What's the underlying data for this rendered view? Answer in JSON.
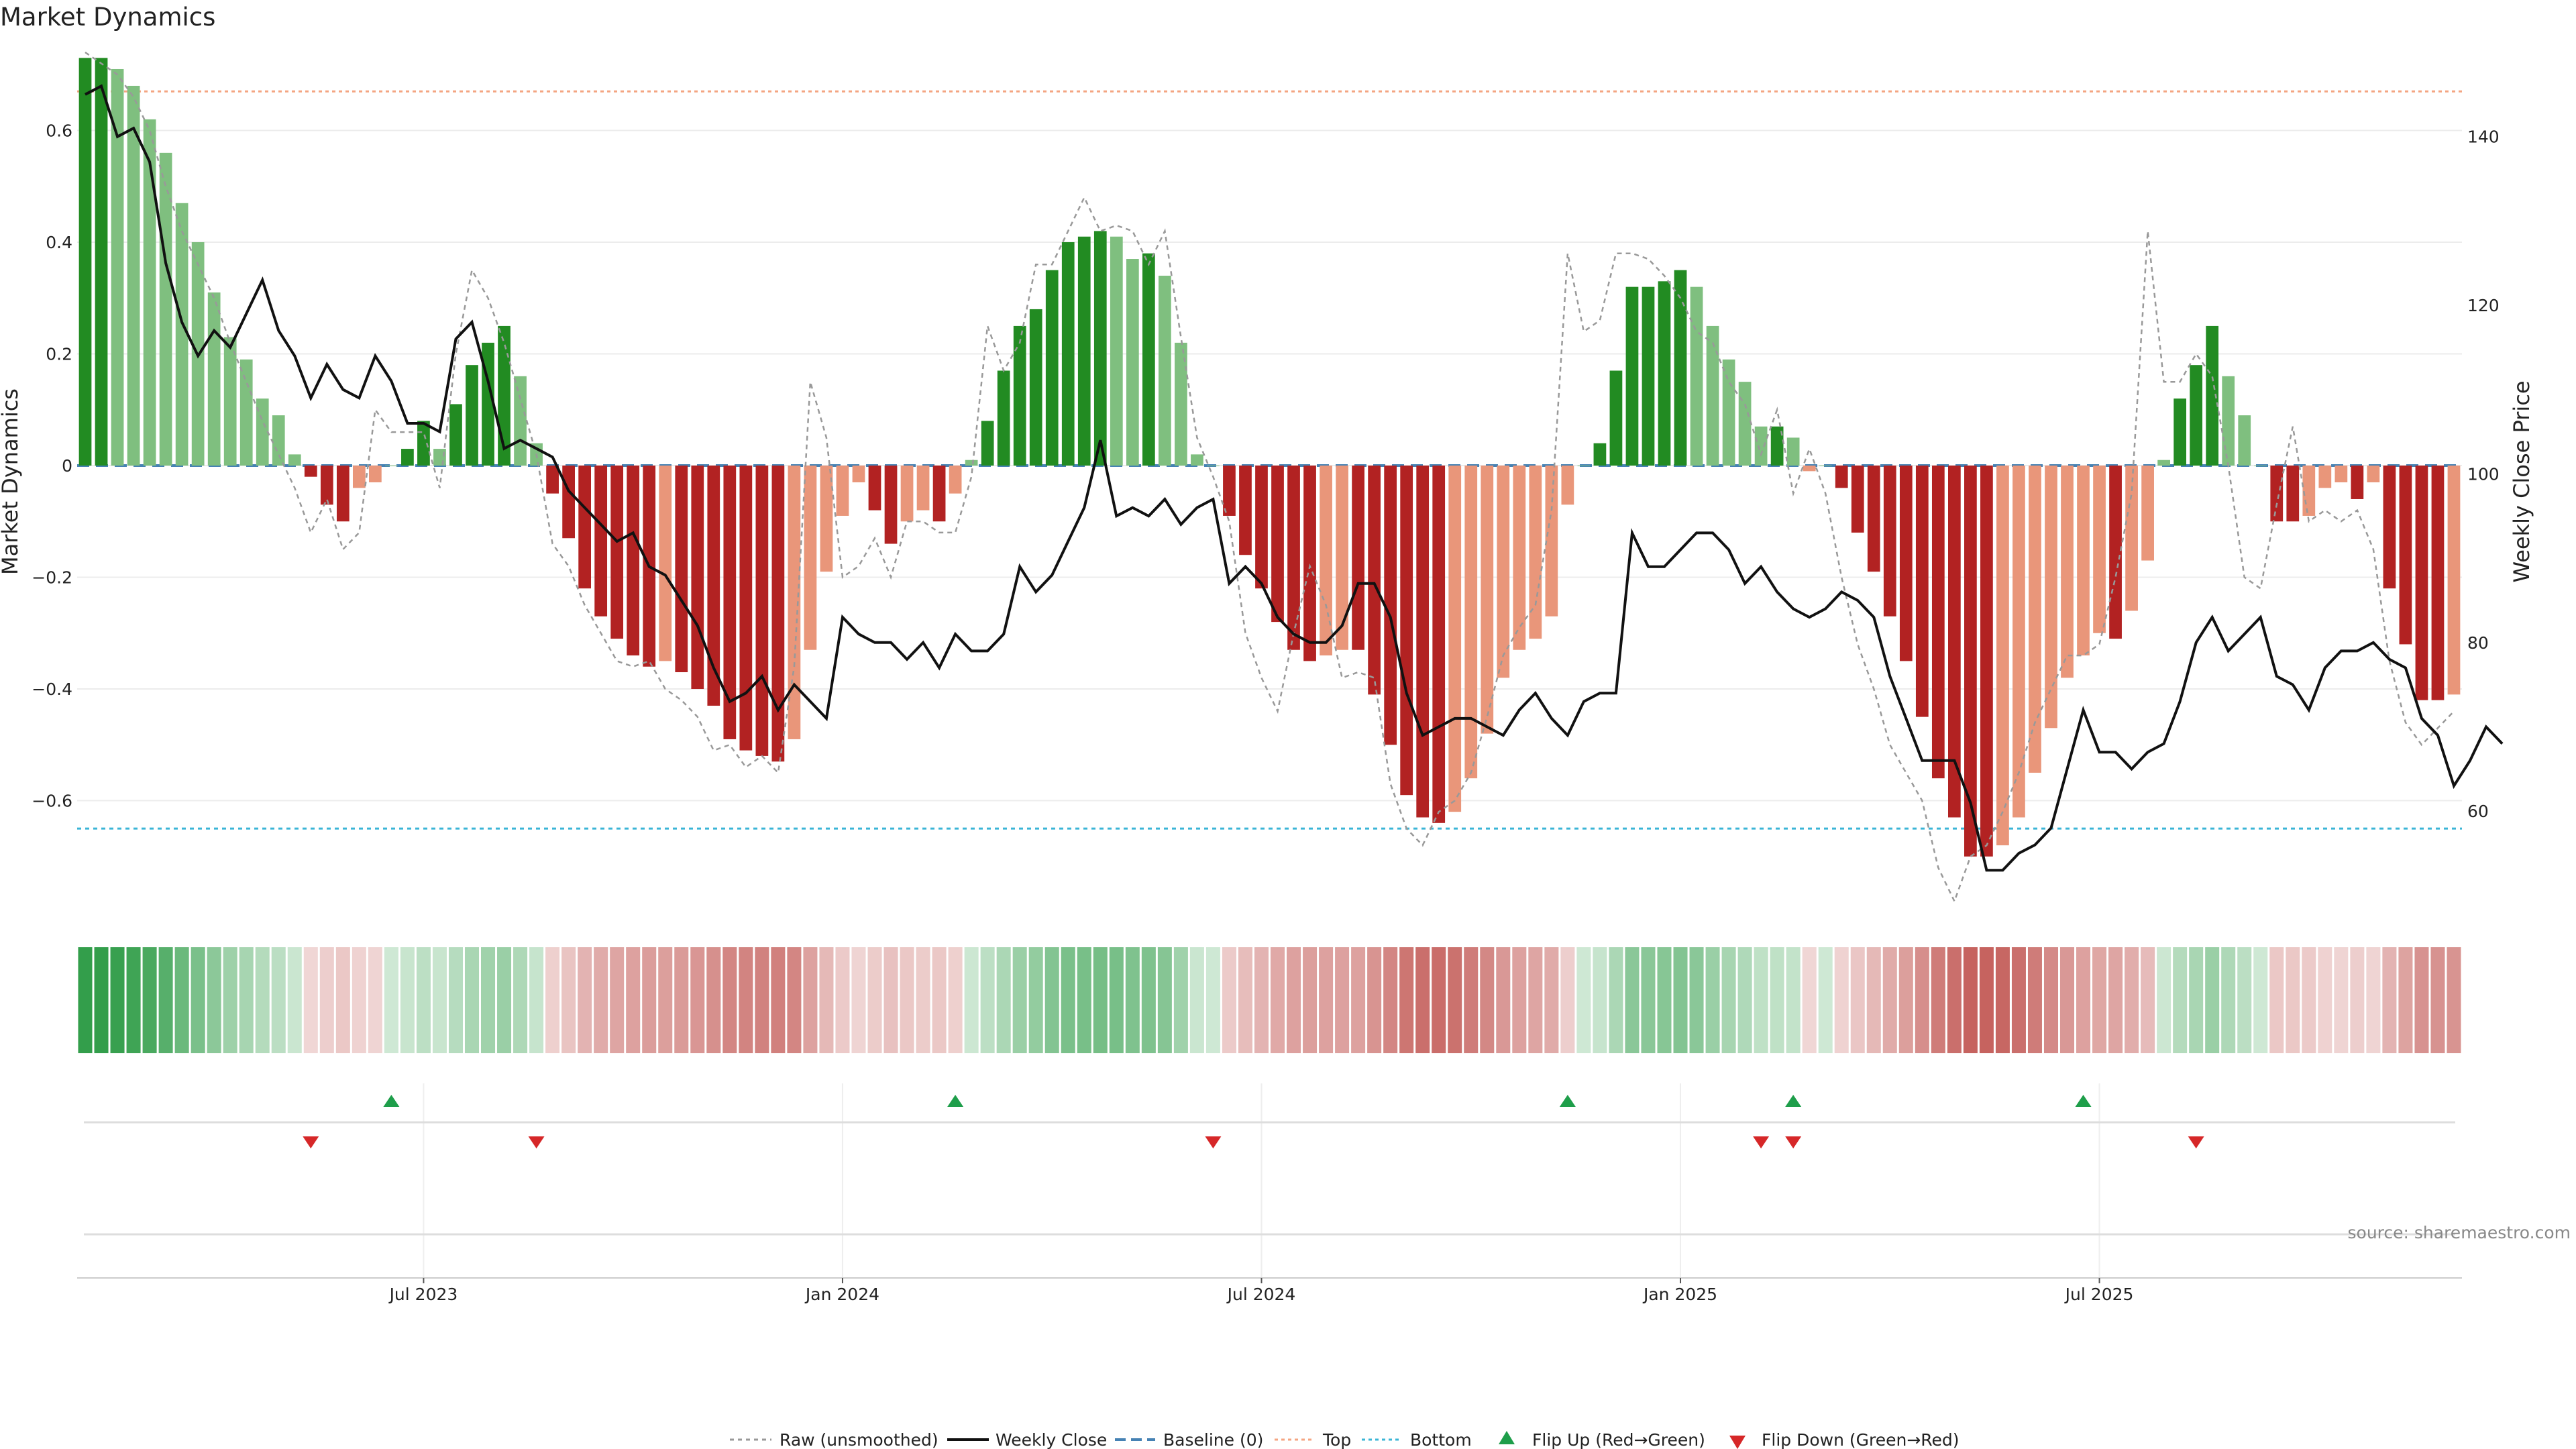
{
  "chart_data": {
    "type": "bar",
    "title": "Market Dynamics",
    "ylabel": "Market Dynamics",
    "y2label": "Weekly Close Price",
    "ylim": [
      -0.8,
      0.74
    ],
    "y2lim": [
      48,
      150
    ],
    "yticks": [
      "0.6",
      "0.4",
      "0.2",
      "0",
      "−0.2",
      "−0.4",
      "−0.6"
    ],
    "yticks_values": [
      0.6,
      0.4,
      0.2,
      0,
      -0.2,
      -0.4,
      -0.6
    ],
    "y2ticks": [
      "140",
      "120",
      "100",
      "80",
      "60"
    ],
    "y2ticks_values": [
      140,
      120,
      100,
      80,
      60
    ],
    "xticks": [
      "Jul 2023",
      "Jan 2024",
      "Jul 2024",
      "Jan 2025",
      "Jul 2025"
    ],
    "xticks_week_index": [
      21.5,
      47.5,
      73.5,
      99.5,
      125.5
    ],
    "top_level": 0.67,
    "bottom_level": -0.65,
    "baseline": 0,
    "values": [
      0.73,
      0.73,
      0.71,
      0.68,
      0.62,
      0.56,
      0.47,
      0.4,
      0.31,
      0.23,
      0.19,
      0.12,
      0.09,
      0.02,
      -0.02,
      -0.07,
      -0.1,
      -0.04,
      -0.03,
      0.0,
      0.03,
      0.08,
      0.03,
      0.11,
      0.18,
      0.22,
      0.25,
      0.16,
      0.04,
      -0.05,
      -0.13,
      -0.22,
      -0.27,
      -0.31,
      -0.34,
      -0.36,
      -0.35,
      -0.37,
      -0.4,
      -0.43,
      -0.49,
      -0.51,
      -0.52,
      -0.53,
      -0.49,
      -0.33,
      -0.19,
      -0.09,
      -0.03,
      -0.08,
      -0.14,
      -0.1,
      -0.08,
      -0.1,
      -0.05,
      0.01,
      0.08,
      0.17,
      0.25,
      0.28,
      0.35,
      0.4,
      0.41,
      0.42,
      0.41,
      0.37,
      0.38,
      0.34,
      0.22,
      0.02,
      0.0,
      -0.09,
      -0.16,
      -0.22,
      -0.28,
      -0.33,
      -0.35,
      -0.34,
      -0.33,
      -0.33,
      -0.41,
      -0.5,
      -0.59,
      -0.63,
      -0.64,
      -0.62,
      -0.56,
      -0.48,
      -0.38,
      -0.33,
      -0.31,
      -0.27,
      -0.07,
      0.0,
      0.04,
      0.17,
      0.32,
      0.32,
      0.33,
      0.35,
      0.32,
      0.25,
      0.19,
      0.15,
      0.07,
      0.07,
      0.05,
      -0.01,
      0.0,
      -0.04,
      -0.12,
      -0.19,
      -0.27,
      -0.35,
      -0.45,
      -0.56,
      -0.63,
      -0.7,
      -0.7,
      -0.68,
      -0.63,
      -0.55,
      -0.47,
      -0.38,
      -0.34,
      -0.3,
      -0.31,
      -0.26,
      -0.17,
      0.01,
      0.12,
      0.18,
      0.25,
      0.16,
      0.09,
      0.0,
      -0.1,
      -0.1,
      -0.09,
      -0.04,
      -0.03,
      -0.06,
      -0.03,
      -0.22,
      -0.32,
      -0.42,
      -0.42,
      -0.41
    ],
    "raw_values": [
      0.74,
      0.72,
      0.7,
      0.66,
      0.6,
      0.5,
      0.42,
      0.36,
      0.3,
      0.22,
      0.15,
      0.08,
      0.02,
      -0.04,
      -0.12,
      -0.06,
      -0.15,
      -0.12,
      0.1,
      0.06,
      0.06,
      0.06,
      -0.04,
      0.2,
      0.35,
      0.3,
      0.22,
      0.12,
      0.02,
      -0.14,
      -0.18,
      -0.25,
      -0.3,
      -0.35,
      -0.36,
      -0.35,
      -0.4,
      -0.42,
      -0.45,
      -0.51,
      -0.5,
      -0.54,
      -0.52,
      -0.55,
      -0.36,
      0.15,
      0.05,
      -0.2,
      -0.18,
      -0.13,
      -0.2,
      -0.1,
      -0.1,
      -0.12,
      -0.12,
      -0.02,
      0.25,
      0.17,
      0.22,
      0.36,
      0.36,
      0.42,
      0.48,
      0.42,
      0.43,
      0.42,
      0.36,
      0.42,
      0.23,
      0.05,
      -0.02,
      -0.1,
      -0.3,
      -0.38,
      -0.44,
      -0.3,
      -0.18,
      -0.25,
      -0.38,
      -0.37,
      -0.38,
      -0.57,
      -0.65,
      -0.68,
      -0.62,
      -0.6,
      -0.55,
      -0.45,
      -0.34,
      -0.29,
      -0.25,
      -0.08,
      0.38,
      0.24,
      0.26,
      0.38,
      0.38,
      0.37,
      0.34,
      0.3,
      0.24,
      0.22,
      0.15,
      0.11,
      0.02,
      0.1,
      -0.05,
      0.03,
      -0.05,
      -0.2,
      -0.32,
      -0.4,
      -0.5,
      -0.55,
      -0.6,
      -0.72,
      -0.78,
      -0.7,
      -0.68,
      -0.62,
      -0.55,
      -0.46,
      -0.4,
      -0.34,
      -0.34,
      -0.32,
      -0.2,
      -0.05,
      0.42,
      0.15,
      0.15,
      0.2,
      0.16,
      0.0,
      -0.2,
      -0.22,
      -0.07,
      0.07,
      -0.1,
      -0.08,
      -0.1,
      -0.08,
      -0.15,
      -0.35,
      -0.46,
      -0.5,
      -0.47,
      -0.44
    ],
    "close_prices": [
      145,
      146,
      140,
      141,
      137,
      125,
      118,
      114,
      117,
      115,
      119,
      123,
      117,
      114,
      109,
      113,
      110,
      109,
      114,
      111,
      106,
      106,
      105,
      116,
      118,
      111,
      103,
      104,
      103,
      102,
      98,
      96,
      94,
      92,
      93,
      89,
      88,
      85,
      82,
      77,
      73,
      74,
      76,
      72,
      75,
      73,
      71,
      83,
      81,
      80,
      80,
      78,
      80,
      77,
      81,
      79,
      79,
      81,
      89,
      86,
      88,
      92,
      96,
      104,
      95,
      96,
      95,
      97,
      94,
      96,
      97,
      87,
      89,
      87,
      83,
      81,
      80,
      80,
      82,
      87,
      87,
      83,
      74,
      69,
      70,
      71,
      71,
      70,
      69,
      72,
      74,
      71,
      69,
      73,
      74,
      74,
      93,
      89,
      89,
      91,
      93,
      93,
      91,
      87,
      89,
      86,
      84,
      83,
      84,
      86,
      85,
      83,
      76,
      71,
      66,
      66,
      66,
      61,
      53,
      53,
      55,
      56,
      58,
      65,
      72,
      67,
      67,
      65,
      67,
      68,
      73,
      80,
      83,
      79,
      81,
      83,
      76,
      75,
      72,
      77,
      79,
      79,
      80,
      78,
      77,
      71,
      69,
      63,
      66,
      70,
      68
    ],
    "flip_up_week_index": [
      19.5,
      54.5,
      92.5,
      106.5,
      124.5
    ],
    "flip_down_week_index": [
      14.5,
      28.5,
      70.5,
      104.5,
      106.5,
      131.5
    ]
  },
  "legend": {
    "raw": "Raw (unsmoothed)",
    "close": "Weekly Close",
    "baseline": "Baseline (0)",
    "top": "Top",
    "bottom": "Bottom",
    "flip_up": "Flip Up (Red→Green)",
    "flip_down": "Flip Down (Green→Red)"
  },
  "source": "source: sharemaestro.com",
  "colors": {
    "green_strong": "#228B22",
    "green_light": "#7FBF7F",
    "red_strong": "#B22222",
    "red_light": "#E9967A",
    "close_line": "#111111",
    "raw_line": "#999999",
    "baseline": "#4682B4",
    "top": "#F4A582",
    "bottom": "#3BB5D6",
    "flip_up": "#1E9E4A",
    "flip_down": "#D62728"
  }
}
